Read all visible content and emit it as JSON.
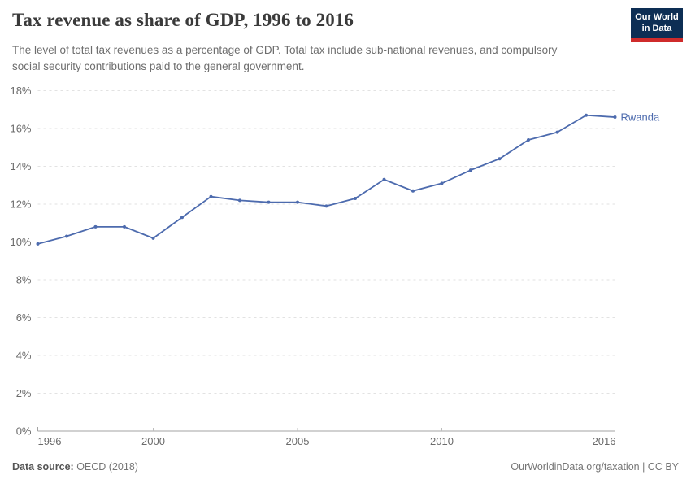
{
  "header": {
    "title": "Tax revenue as share of GDP, 1996 to 2016",
    "subtitle": "The level of total tax revenues as a percentage of GDP. Total tax include sub-national revenues, and compulsory social security contributions paid to the general government.",
    "logo": {
      "line1": "Our World",
      "line2": "in Data"
    }
  },
  "footer": {
    "source_label": "Data source:",
    "source_value": " OECD (2018)",
    "attribution": "OurWorldinData.org/taxation | CC BY"
  },
  "colors": {
    "logo_bg": "#0d2e54",
    "logo_stripe": "#cf2b2b",
    "accent": "#4d6bae",
    "grid": "#e2e2e2",
    "axis": "#a3a3a3",
    "tick_text": "#6b6b6b"
  },
  "chart_data": {
    "type": "line",
    "title": "Tax revenue as share of GDP, 1996 to 2016",
    "xlabel": "",
    "ylabel": "",
    "xlim": [
      1996,
      2016
    ],
    "ylim": [
      0,
      18
    ],
    "x_ticks": [
      1996,
      2000,
      2005,
      2010,
      2016
    ],
    "y_ticks": [
      0,
      2,
      4,
      6,
      8,
      10,
      12,
      14,
      16,
      18
    ],
    "y_tick_suffix": "%",
    "grid": "horizontal-dashed",
    "legend": "end-of-line-label",
    "series": [
      {
        "name": "Rwanda",
        "color": "#4d6bae",
        "x": [
          1996,
          1997,
          1998,
          1999,
          2000,
          2001,
          2002,
          2003,
          2004,
          2005,
          2006,
          2007,
          2008,
          2009,
          2010,
          2011,
          2012,
          2013,
          2014,
          2015,
          2016
        ],
        "values": [
          9.9,
          10.3,
          10.8,
          10.8,
          10.2,
          11.3,
          12.4,
          12.2,
          12.1,
          12.1,
          11.9,
          12.3,
          13.3,
          12.7,
          13.1,
          13.8,
          14.4,
          15.4,
          15.8,
          16.7,
          16.6
        ]
      }
    ]
  }
}
